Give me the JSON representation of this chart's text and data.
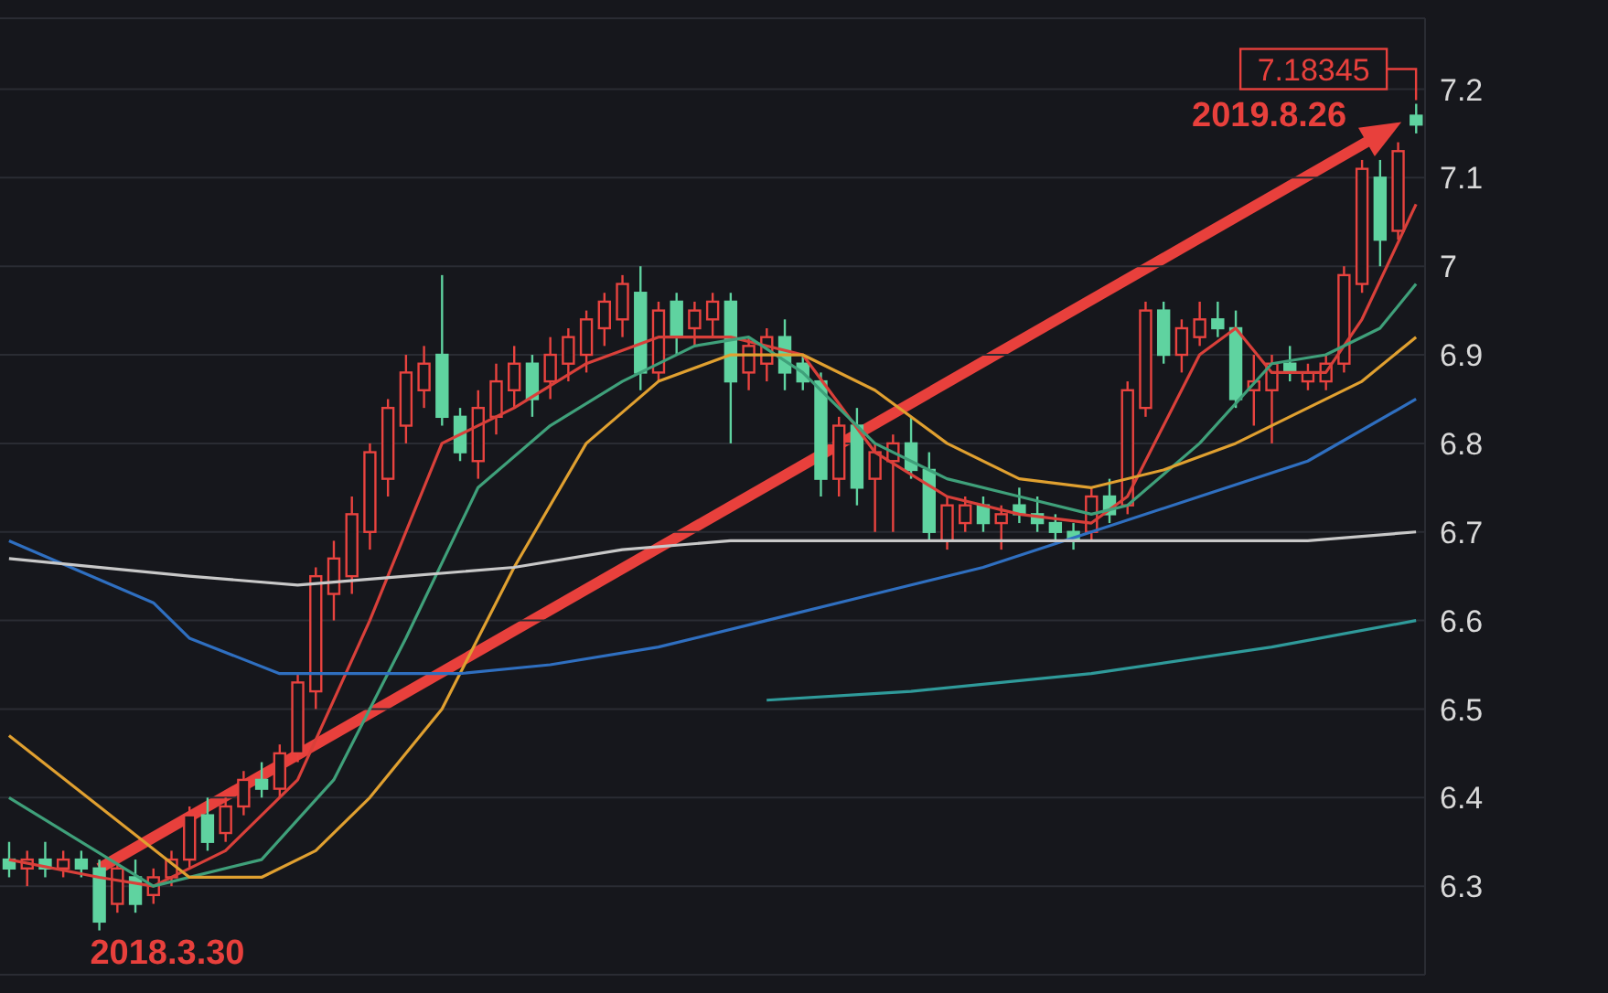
{
  "chart_data": {
    "type": "candlestick",
    "categories": [
      null,
      null,
      null,
      null,
      null,
      null,
      null,
      null,
      null,
      null,
      null,
      null,
      null,
      null,
      null,
      null,
      null,
      null,
      null,
      null,
      null,
      null,
      null,
      null,
      null,
      null,
      null,
      null,
      null,
      null,
      null,
      null,
      null,
      null,
      null,
      null,
      null,
      null,
      null,
      null,
      null,
      null,
      null,
      null,
      null,
      null,
      null,
      null,
      null,
      null,
      null,
      null,
      null,
      null,
      null,
      null,
      null,
      null,
      null,
      null,
      null,
      null,
      null,
      null,
      null,
      null,
      null,
      null,
      null,
      null,
      null,
      null,
      null,
      null,
      null,
      null,
      null,
      null,
      null
    ],
    "ohlc": [
      [
        6.33,
        6.35,
        6.31,
        6.32
      ],
      [
        6.32,
        6.34,
        6.3,
        6.33
      ],
      [
        6.33,
        6.35,
        6.31,
        6.32
      ],
      [
        6.32,
        6.34,
        6.31,
        6.33
      ],
      [
        6.33,
        6.34,
        6.31,
        6.32
      ],
      [
        6.32,
        6.33,
        6.25,
        6.26
      ],
      [
        6.28,
        6.33,
        6.27,
        6.32
      ],
      [
        6.31,
        6.33,
        6.27,
        6.28
      ],
      [
        6.29,
        6.32,
        6.28,
        6.31
      ],
      [
        6.31,
        6.34,
        6.3,
        6.33
      ],
      [
        6.33,
        6.39,
        6.32,
        6.38
      ],
      [
        6.38,
        6.4,
        6.34,
        6.35
      ],
      [
        6.36,
        6.4,
        6.35,
        6.39
      ],
      [
        6.39,
        6.43,
        6.38,
        6.42
      ],
      [
        6.42,
        6.44,
        6.4,
        6.41
      ],
      [
        6.41,
        6.46,
        6.4,
        6.45
      ],
      [
        6.45,
        6.54,
        6.44,
        6.53
      ],
      [
        6.52,
        6.66,
        6.5,
        6.65
      ],
      [
        6.63,
        6.69,
        6.6,
        6.67
      ],
      [
        6.65,
        6.74,
        6.63,
        6.72
      ],
      [
        6.7,
        6.8,
        6.68,
        6.79
      ],
      [
        6.76,
        6.85,
        6.74,
        6.84
      ],
      [
        6.82,
        6.9,
        6.8,
        6.88
      ],
      [
        6.86,
        6.91,
        6.84,
        6.89
      ],
      [
        6.9,
        6.99,
        6.82,
        6.83
      ],
      [
        6.83,
        6.84,
        6.78,
        6.79
      ],
      [
        6.78,
        6.86,
        6.76,
        6.84
      ],
      [
        6.83,
        6.89,
        6.81,
        6.87
      ],
      [
        6.86,
        6.91,
        6.84,
        6.89
      ],
      [
        6.89,
        6.9,
        6.83,
        6.85
      ],
      [
        6.87,
        6.92,
        6.85,
        6.9
      ],
      [
        6.89,
        6.93,
        6.87,
        6.92
      ],
      [
        6.9,
        6.95,
        6.88,
        6.94
      ],
      [
        6.93,
        6.97,
        6.91,
        6.96
      ],
      [
        6.94,
        6.99,
        6.92,
        6.98
      ],
      [
        6.97,
        7.0,
        6.86,
        6.88
      ],
      [
        6.88,
        6.96,
        6.87,
        6.95
      ],
      [
        6.96,
        6.97,
        6.9,
        6.92
      ],
      [
        6.93,
        6.96,
        6.91,
        6.95
      ],
      [
        6.94,
        6.97,
        6.92,
        6.96
      ],
      [
        6.96,
        6.97,
        6.8,
        6.87
      ],
      [
        6.88,
        6.92,
        6.86,
        6.91
      ],
      [
        6.89,
        6.93,
        6.87,
        6.92
      ],
      [
        6.92,
        6.94,
        6.86,
        6.88
      ],
      [
        6.89,
        6.9,
        6.86,
        6.87
      ],
      [
        6.87,
        6.88,
        6.74,
        6.76
      ],
      [
        6.76,
        6.83,
        6.74,
        6.82
      ],
      [
        6.82,
        6.84,
        6.73,
        6.75
      ],
      [
        6.76,
        6.8,
        6.7,
        6.79
      ],
      [
        6.78,
        6.81,
        6.7,
        6.8
      ],
      [
        6.8,
        6.83,
        6.76,
        6.77
      ],
      [
        6.77,
        6.79,
        6.69,
        6.7
      ],
      [
        6.69,
        6.74,
        6.68,
        6.73
      ],
      [
        6.71,
        6.74,
        6.7,
        6.73
      ],
      [
        6.73,
        6.74,
        6.7,
        6.71
      ],
      [
        6.71,
        6.73,
        6.68,
        6.72
      ],
      [
        6.73,
        6.75,
        6.71,
        6.72
      ],
      [
        6.72,
        6.74,
        6.7,
        6.71
      ],
      [
        6.71,
        6.72,
        6.69,
        6.7
      ],
      [
        6.7,
        6.71,
        6.68,
        6.69
      ],
      [
        6.7,
        6.75,
        6.69,
        6.74
      ],
      [
        6.74,
        6.76,
        6.71,
        6.72
      ],
      [
        6.73,
        6.87,
        6.72,
        6.86
      ],
      [
        6.84,
        6.96,
        6.83,
        6.95
      ],
      [
        6.95,
        6.96,
        6.89,
        6.9
      ],
      [
        6.9,
        6.94,
        6.88,
        6.93
      ],
      [
        6.92,
        6.96,
        6.91,
        6.94
      ],
      [
        6.94,
        6.96,
        6.92,
        6.93
      ],
      [
        6.93,
        6.95,
        6.84,
        6.85
      ],
      [
        6.86,
        6.9,
        6.82,
        6.87
      ],
      [
        6.86,
        6.9,
        6.8,
        6.89
      ],
      [
        6.89,
        6.91,
        6.87,
        6.88
      ],
      [
        6.87,
        6.89,
        6.86,
        6.88
      ],
      [
        6.87,
        6.9,
        6.86,
        6.89
      ],
      [
        6.89,
        7.0,
        6.88,
        6.99
      ],
      [
        6.98,
        7.12,
        6.97,
        7.11
      ],
      [
        7.1,
        7.12,
        7.0,
        7.03
      ],
      [
        7.04,
        7.14,
        7.03,
        7.13
      ],
      [
        7.17,
        7.18345,
        7.15,
        7.16
      ]
    ],
    "series": [
      {
        "type": "line",
        "color": "#d9403a",
        "values": [
          6.33,
          null,
          null,
          null,
          null,
          6.31,
          null,
          null,
          6.3,
          null,
          null,
          null,
          6.34,
          null,
          null,
          null,
          6.42,
          null,
          null,
          null,
          6.6,
          null,
          null,
          null,
          6.8,
          null,
          null,
          null,
          6.84,
          null,
          null,
          null,
          6.89,
          null,
          null,
          null,
          6.92,
          null,
          null,
          null,
          6.92,
          null,
          null,
          null,
          6.9,
          null,
          null,
          null,
          6.79,
          null,
          null,
          null,
          6.74,
          null,
          null,
          null,
          6.72,
          null,
          null,
          null,
          6.71,
          null,
          6.74,
          null,
          null,
          null,
          6.9,
          null,
          6.93,
          null,
          6.88,
          null,
          null,
          6.88,
          null,
          6.94,
          null,
          null,
          7.07
        ]
      },
      {
        "type": "line",
        "color": "#3fa07a",
        "values": [
          6.4,
          null,
          null,
          null,
          null,
          null,
          null,
          null,
          6.3,
          null,
          null,
          null,
          null,
          null,
          6.33,
          null,
          null,
          null,
          6.42,
          null,
          null,
          null,
          6.58,
          null,
          null,
          null,
          6.75,
          null,
          null,
          null,
          6.82,
          null,
          null,
          null,
          6.87,
          null,
          null,
          null,
          6.91,
          null,
          null,
          6.92,
          null,
          null,
          6.88,
          null,
          null,
          null,
          6.8,
          null,
          null,
          null,
          6.76,
          null,
          null,
          null,
          6.74,
          null,
          null,
          null,
          6.72,
          null,
          6.73,
          null,
          null,
          null,
          6.8,
          null,
          null,
          null,
          6.89,
          null,
          null,
          6.9,
          null,
          null,
          6.93,
          null,
          6.98
        ]
      },
      {
        "type": "line",
        "color": "#e0a030",
        "values": [
          6.47,
          null,
          null,
          null,
          null,
          null,
          null,
          null,
          null,
          null,
          6.31,
          null,
          null,
          null,
          6.31,
          null,
          null,
          6.34,
          null,
          null,
          6.4,
          null,
          null,
          null,
          6.5,
          null,
          null,
          null,
          6.66,
          null,
          null,
          null,
          6.8,
          null,
          null,
          null,
          6.87,
          null,
          null,
          null,
          6.9,
          null,
          null,
          null,
          6.9,
          null,
          null,
          null,
          6.86,
          null,
          null,
          null,
          6.8,
          null,
          null,
          null,
          6.76,
          null,
          null,
          null,
          6.75,
          null,
          null,
          null,
          6.77,
          null,
          null,
          null,
          6.8,
          null,
          null,
          null,
          6.84,
          null,
          null,
          6.87,
          null,
          null,
          6.92
        ]
      },
      {
        "type": "line",
        "color": "#2f6fc0",
        "values": [
          6.69,
          null,
          null,
          null,
          null,
          null,
          null,
          null,
          6.62,
          null,
          6.58,
          null,
          null,
          null,
          null,
          6.54,
          null,
          null,
          null,
          null,
          6.54,
          null,
          null,
          null,
          null,
          6.54,
          null,
          null,
          null,
          null,
          6.55,
          null,
          null,
          null,
          null,
          null,
          6.57,
          null,
          null,
          null,
          null,
          null,
          6.6,
          null,
          null,
          null,
          null,
          null,
          6.63,
          null,
          null,
          null,
          null,
          null,
          6.66,
          null,
          null,
          null,
          null,
          null,
          6.7,
          null,
          null,
          null,
          null,
          null,
          6.74,
          null,
          null,
          null,
          null,
          null,
          6.78,
          null,
          null,
          null,
          null,
          null,
          6.85
        ]
      },
      {
        "type": "line",
        "color": "#c8c8c8",
        "values": [
          6.67,
          null,
          null,
          null,
          null,
          null,
          null,
          null,
          null,
          null,
          6.65,
          null,
          null,
          null,
          null,
          null,
          6.64,
          null,
          null,
          null,
          null,
          null,
          6.65,
          null,
          null,
          null,
          null,
          null,
          6.66,
          null,
          null,
          null,
          null,
          null,
          6.68,
          null,
          null,
          null,
          null,
          null,
          6.69,
          null,
          null,
          null,
          null,
          null,
          6.69,
          null,
          null,
          null,
          null,
          null,
          6.69,
          null,
          null,
          null,
          null,
          null,
          null,
          null,
          6.69,
          null,
          null,
          null,
          null,
          null,
          6.69,
          null,
          null,
          null,
          null,
          null,
          6.69,
          null,
          null,
          null,
          null,
          null,
          6.7
        ]
      },
      {
        "type": "line",
        "color": "#2f9a9a",
        "values": [
          null,
          null,
          null,
          null,
          null,
          null,
          null,
          null,
          null,
          null,
          null,
          null,
          null,
          null,
          null,
          null,
          null,
          null,
          null,
          null,
          null,
          null,
          null,
          null,
          null,
          null,
          null,
          null,
          null,
          null,
          null,
          null,
          null,
          null,
          null,
          null,
          null,
          null,
          null,
          null,
          null,
          null,
          6.51,
          null,
          null,
          null,
          null,
          null,
          null,
          null,
          6.52,
          null,
          null,
          null,
          null,
          null,
          null,
          null,
          null,
          null,
          6.54,
          null,
          null,
          null,
          null,
          null,
          null,
          null,
          null,
          null,
          6.57,
          null,
          null,
          null,
          null,
          null,
          null,
          null,
          6.6
        ]
      }
    ],
    "ylim": [
      6.2,
      7.28
    ],
    "yticks": [
      6.3,
      6.4,
      6.5,
      6.6,
      6.7,
      6.8,
      6.9,
      7,
      7.1,
      7.2
    ],
    "grid": "y",
    "tick_labels": "y",
    "line_style": "solid",
    "marker": "none",
    "annotations": [
      "2018.3.30",
      "2019.8.26",
      "7.18345"
    ]
  }
}
